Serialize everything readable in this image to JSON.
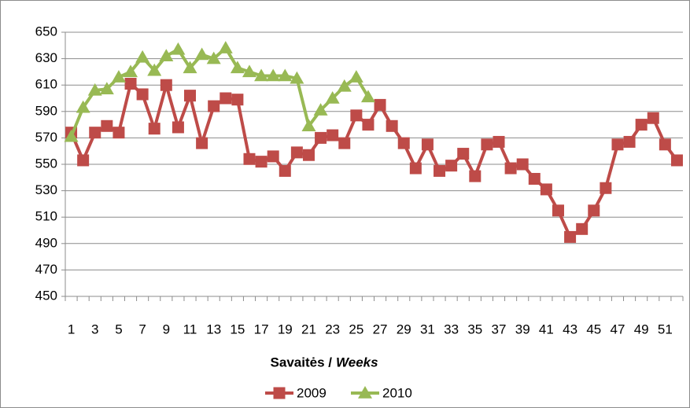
{
  "chart_data": {
    "type": "line",
    "categories": [
      1,
      null,
      3,
      null,
      5,
      null,
      7,
      null,
      9,
      null,
      11,
      null,
      13,
      null,
      15,
      null,
      17,
      null,
      19,
      null,
      21,
      null,
      23,
      null,
      25,
      null,
      27,
      null,
      29,
      null,
      31,
      null,
      33,
      null,
      35,
      null,
      37,
      null,
      39,
      null,
      41,
      null,
      43,
      null,
      45,
      null,
      47,
      null,
      49,
      null,
      51,
      null
    ],
    "xlabel": {
      "main": "Savaitės /",
      "emphasis": "Weeks"
    },
    "series": [
      {
        "name": "2009",
        "color": "#be4b48",
        "marker": "square",
        "values": [
          574,
          553,
          574,
          579,
          574,
          611,
          603,
          577,
          610,
          578,
          602,
          566,
          594,
          600,
          599,
          554,
          552,
          556,
          545,
          559,
          557,
          570,
          572,
          566,
          587,
          580,
          595,
          579,
          566,
          547,
          565,
          545,
          549,
          558,
          541,
          565,
          567,
          547,
          550,
          539,
          531,
          515,
          495,
          501,
          515,
          532,
          565,
          567,
          580,
          585,
          565,
          553
        ]
      },
      {
        "name": "2010",
        "color": "#98b954",
        "marker": "triangle",
        "values": [
          571,
          593,
          606,
          607,
          616,
          620,
          631,
          621,
          632,
          637,
          623,
          633,
          630,
          638,
          623,
          620,
          617,
          617,
          617,
          615,
          579,
          591,
          600,
          609,
          616,
          601,
          null,
          null,
          null,
          null,
          null,
          null,
          null,
          null,
          null,
          null,
          null,
          null,
          null,
          null,
          null,
          null,
          null,
          null,
          null,
          null,
          null,
          null,
          null,
          null,
          null,
          null
        ]
      }
    ],
    "ylim": [
      450,
      650
    ],
    "yticks": [
      450,
      470,
      490,
      510,
      530,
      550,
      570,
      590,
      610,
      630,
      650
    ],
    "grid": true,
    "legend": "bottom"
  }
}
